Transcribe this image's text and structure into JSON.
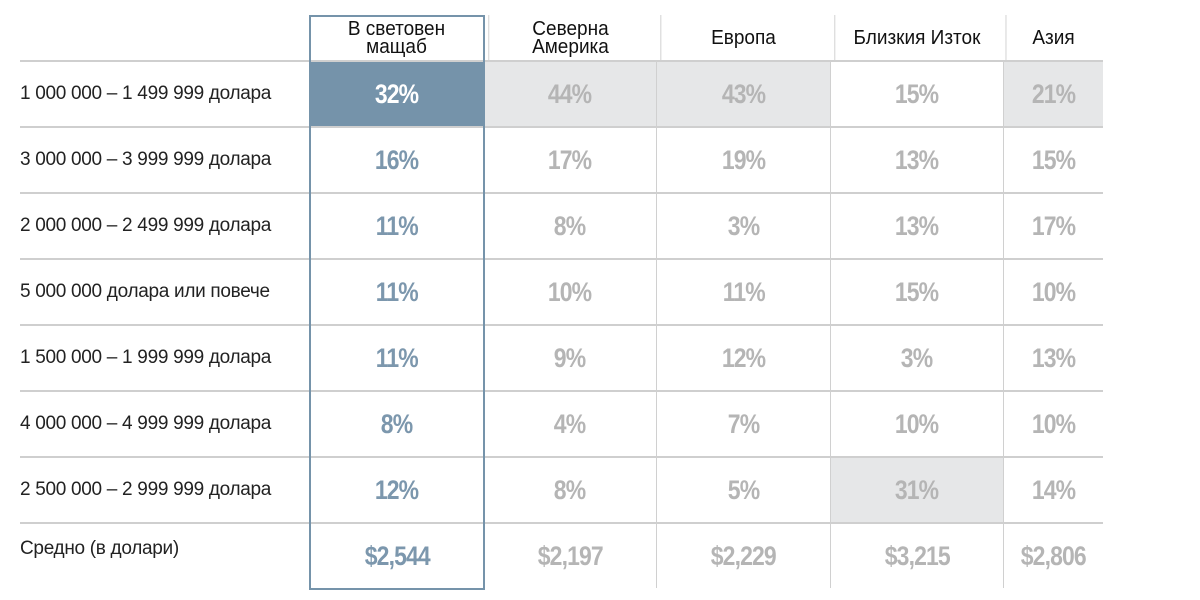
{
  "chart_data": {
    "type": "table",
    "columns": [
      "В световен мащаб",
      "Северна Америка",
      "Европа",
      "Близкия Изток",
      "Азия"
    ],
    "rows": [
      {
        "label": "1 000 000 – 1 499 999 долара",
        "values": [
          "32%",
          "44%",
          "43%",
          "15%",
          "21%"
        ],
        "highlight": [
          true,
          true,
          true,
          false,
          true
        ]
      },
      {
        "label": "3 000 000 – 3 999 999 долара",
        "values": [
          "16%",
          "17%",
          "19%",
          "13%",
          "15%"
        ],
        "highlight": [
          false,
          false,
          false,
          false,
          false
        ]
      },
      {
        "label": "2 000 000 – 2 499 999 долара",
        "values": [
          "11%",
          "8%",
          "3%",
          "13%",
          "17%"
        ],
        "highlight": [
          false,
          false,
          false,
          false,
          false
        ]
      },
      {
        "label": "5 000 000 долара или повече",
        "values": [
          "11%",
          "10%",
          "11%",
          "15%",
          "10%"
        ],
        "highlight": [
          false,
          false,
          false,
          false,
          false
        ]
      },
      {
        "label": "1 500 000 – 1 999 999 долара",
        "values": [
          "11%",
          "9%",
          "12%",
          "3%",
          "13%"
        ],
        "highlight": [
          false,
          false,
          false,
          false,
          false
        ]
      },
      {
        "label": "4 000 000 – 4 999 999 долара",
        "values": [
          "8%",
          "4%",
          "7%",
          "10%",
          "10%"
        ],
        "highlight": [
          false,
          false,
          false,
          false,
          false
        ]
      },
      {
        "label": "2 500 000 – 2 999 999 долара",
        "values": [
          "12%",
          "8%",
          "5%",
          "31%",
          "14%"
        ],
        "highlight": [
          false,
          false,
          false,
          true,
          false
        ]
      },
      {
        "label": "Средно (в долари)",
        "values": [
          "$2,544",
          "$2,197",
          "$2,229",
          "$3,215",
          "$2,806"
        ],
        "highlight": [
          false,
          false,
          false,
          false,
          false
        ]
      }
    ],
    "colors": {
      "accent": "#7593aa",
      "accent_text": "#7c97ad",
      "muted_text": "#b5b5b5",
      "highlight_bg": "#e6e7e8"
    }
  }
}
